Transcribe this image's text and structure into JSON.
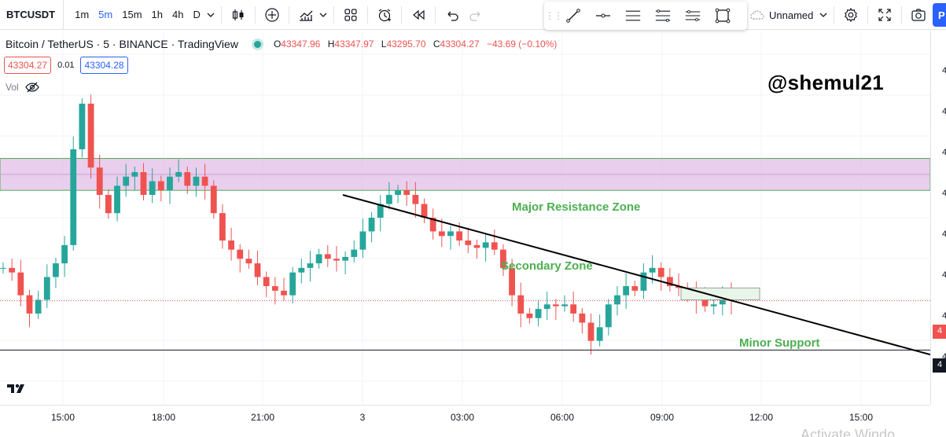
{
  "toolbar": {
    "symbol": "BTCUSDT",
    "timeframes": [
      "1m",
      "5m",
      "15m",
      "1h",
      "4h",
      "D"
    ],
    "active_timeframe": "5m",
    "layout_name": "Unnamed",
    "publish_label": "P"
  },
  "legend": {
    "title": "Bitcoin / TetherUS · 5 · BINANCE · TradingView",
    "open_label": "O",
    "open": "43347.96",
    "high_label": "H",
    "high": "43347.97",
    "low_label": "L",
    "low": "43295.70",
    "close_label": "C",
    "close": "43304.27",
    "change": "−43.69 (−0.10%)"
  },
  "quotes": {
    "sell": "43304.27",
    "spread": "0.01",
    "buy": "43304.28"
  },
  "volume": {
    "label": "Vol"
  },
  "watermark": "@shemul21",
  "annotations": {
    "major_resistance": "Major Resistance Zone",
    "secondary_zone": "Secondary Zone",
    "minor_support": "Minor Support"
  },
  "time_axis": [
    "15:00",
    "18:00",
    "21:00",
    "3",
    "03:00",
    "06:00",
    "09:00",
    "12:00",
    "15:00"
  ],
  "price_axis": {
    "visible_digit": "4",
    "last_price_tag": "4",
    "line_tag": "4"
  },
  "windows_watermark": "Activate Windo",
  "colors": {
    "up": "#26a69a",
    "down": "#ef5350",
    "accent": "#2962ff",
    "zone_fill": "#e1bee7",
    "zone_border": "#4caf50",
    "annotation": "#4caf50"
  },
  "chart_data": {
    "type": "candlestick",
    "series": [
      {
        "name": "BTCUSDT",
        "values": [
          43340,
          43335,
          43310,
          43290,
          43305,
          43330,
          43345,
          43365,
          43470,
          43520,
          43450,
          43420,
          43400,
          43430,
          43440,
          43445,
          43420,
          43435,
          43425,
          43440,
          43445,
          43430,
          43440,
          43430,
          43400,
          43370,
          43360,
          43350,
          43345,
          43330,
          43320,
          43315,
          43310,
          43335,
          43340,
          43345,
          43355,
          43350,
          43348,
          43352,
          43360,
          43380,
          43395,
          43410,
          43420,
          43425,
          43420,
          43410,
          43395,
          43380,
          43375,
          43380,
          43370,
          43365,
          43362,
          43368,
          43360,
          43340,
          43310,
          43290,
          43285,
          43295,
          43300,
          43298,
          43300,
          43290,
          43280,
          43260,
          43275,
          43300,
          43310,
          43320,
          43315,
          43335,
          43340,
          43330,
          43320,
          43318,
          43315,
          43305,
          43298,
          43300,
          43310,
          43304
        ]
      }
    ],
    "lines": [
      {
        "name": "trendline",
        "from": [
          "22:55",
          43420
        ],
        "to": [
          "15:55",
          43245
        ]
      },
      {
        "name": "horizontal",
        "value": 43250
      }
    ],
    "zones": [
      {
        "name": "Major Resistance Zone",
        "top": 43460,
        "bottom": 43425
      },
      {
        "name": "Minor Support",
        "top": 43318,
        "bottom": 43305
      }
    ],
    "grid": true
  }
}
